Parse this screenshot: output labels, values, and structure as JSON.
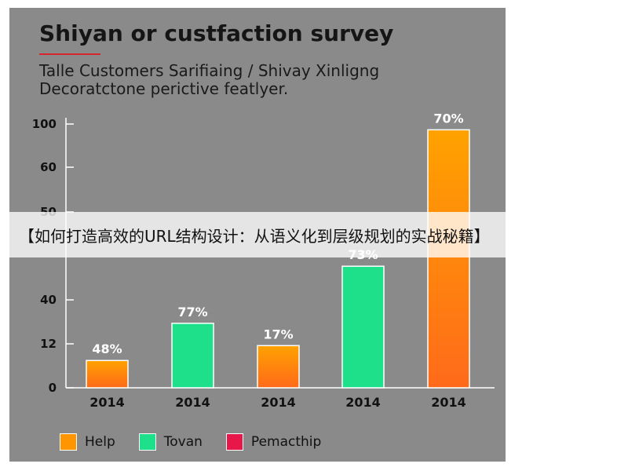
{
  "chart_data": {
    "type": "bar",
    "title": "Shiyan or custfaction survey",
    "subtitle_lines": [
      "Talle Customers Sarifiaing / Shivay Xinligng",
      "Decoratctone perictive featlyer."
    ],
    "xlabel": "",
    "ylabel": "",
    "y_tick_labels": [
      "0",
      "12",
      "40",
      "50",
      "60",
      "100"
    ],
    "categories": [
      "2014",
      "2014",
      "2014",
      "2014",
      "2014"
    ],
    "values": [
      11,
      26,
      17,
      49,
      104
    ],
    "bar_labels": [
      "48%",
      "77%",
      "17%",
      "73%",
      "70%"
    ],
    "bar_series": [
      "Help",
      "Tovan",
      "Help",
      "Tovan",
      "Help"
    ],
    "legend": {
      "placement": "bottom",
      "items": [
        {
          "name": "Help",
          "color": "#ff9500"
        },
        {
          "name": "Tovan",
          "color": "#1ee08a"
        },
        {
          "name": "Pemacthip",
          "color": "#e8174a"
        }
      ]
    },
    "colors": {
      "Help_top": "#ffa200",
      "Help_bottom": "#ff6a1a",
      "Tovan": "#1ee08a"
    },
    "grid": false
  },
  "banner": {
    "text": "【如何打造高效的URL结构设计：从语义化到层级规划的实战秘籍】"
  }
}
